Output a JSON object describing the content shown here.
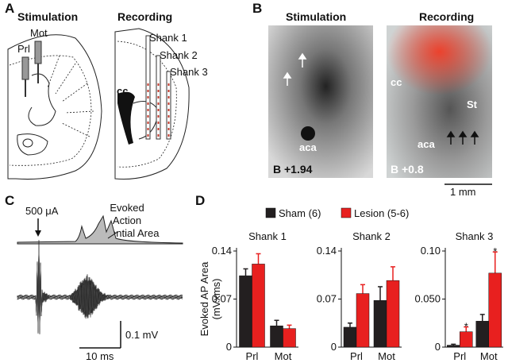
{
  "panel_labels": [
    "A",
    "B",
    "C",
    "D"
  ],
  "panel_a": {
    "stimulation": "Stimulation",
    "recording": "Recording",
    "electrodes": [
      "Mot",
      "Prl"
    ],
    "cc": "cc",
    "shanks": [
      "Shank 1",
      "Shank 2",
      "Shank 3"
    ]
  },
  "panel_b": {
    "stimulation": "Stimulation",
    "recording": "Recording",
    "left_aca": "aca",
    "left_coord": "B +1.94",
    "right_cc": "cc",
    "right_st": "St",
    "right_aca": "aca",
    "right_coord": "B +0.8",
    "scale": "1 mm"
  },
  "panel_c": {
    "stimulus": "500 μA",
    "evoked": [
      "Evoked",
      "Action",
      "Potential Area"
    ],
    "scale_v": "0.1 mV",
    "scale_t": "10 ms"
  },
  "chart_data": [
    {
      "type": "bar",
      "title": "Shank 1",
      "ylabel": "Evoked AP Area",
      "ylabel_units": "(mVxms)",
      "categories": [
        "Prl",
        "Mot"
      ],
      "ylim": [
        0,
        0.14
      ],
      "yticks": [
        0,
        0.07,
        0.14
      ],
      "series": [
        {
          "name": "Sham (6)",
          "color": "#231f20",
          "values": [
            0.104,
            0.031
          ],
          "errors": [
            0.01,
            0.008
          ]
        },
        {
          "name": "Lesion (5-6)",
          "color": "#e8201f",
          "values": [
            0.121,
            0.027
          ],
          "errors": [
            0.015,
            0.005
          ]
        }
      ]
    },
    {
      "type": "bar",
      "title": "Shank 2",
      "categories": [
        "Prl",
        "Mot"
      ],
      "ylim": [
        0,
        0.14
      ],
      "yticks": [
        0,
        0.07,
        0.14
      ],
      "series": [
        {
          "name": "Sham (6)",
          "color": "#231f20",
          "values": [
            0.029,
            0.068
          ],
          "errors": [
            0.006,
            0.02
          ]
        },
        {
          "name": "Lesion (5-6)",
          "color": "#e8201f",
          "values": [
            0.078,
            0.097
          ],
          "errors": [
            0.013,
            0.02
          ]
        }
      ]
    },
    {
      "type": "bar",
      "title": "Shank 3",
      "categories": [
        "Prl",
        "Mot"
      ],
      "ylim": [
        0,
        0.1
      ],
      "yticks": [
        0,
        {
          "value": 0.05,
          "label": "0.050"
        },
        {
          "value": 0.1,
          "label": "0.10"
        }
      ],
      "series": [
        {
          "name": "Sham (6)",
          "color": "#231f20",
          "values": [
            0.002,
            0.027
          ],
          "errors": [
            0.001,
            0.007
          ]
        },
        {
          "name": "Lesion (5-6)",
          "color": "#e8201f",
          "values": [
            0.016,
            0.077
          ],
          "errors": [
            0.005,
            0.022
          ],
          "annotations": [
            "*",
            "*"
          ]
        }
      ]
    }
  ]
}
